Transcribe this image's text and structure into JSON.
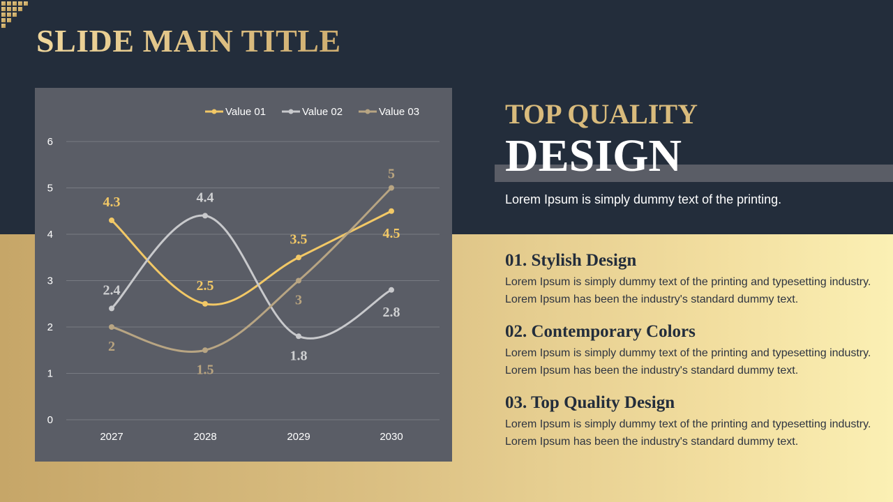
{
  "slide": {
    "title": "SLIDE MAIN TITLE",
    "heading_top": "TOP QUALITY",
    "heading_main": "DESIGN",
    "subtitle": "Lorem Ipsum is simply dummy text of the printing."
  },
  "items": [
    {
      "title": "01. Stylish Design",
      "text": "Lorem Ipsum is simply dummy text of the printing and typesetting industry. Lorem Ipsum has been the industry's standard dummy text."
    },
    {
      "title": "02. Contemporary Colors",
      "text": "Lorem Ipsum is simply dummy text of the printing and typesetting industry. Lorem Ipsum has been the industry's standard dummy text."
    },
    {
      "title": "03. Top Quality Design",
      "text": "Lorem Ipsum is simply dummy text of the printing and typesetting industry. Lorem Ipsum has been the industry's standard dummy text."
    }
  ],
  "colors": {
    "background_dark": "#232d3b",
    "panel": "#5a5d66",
    "gold": "#d9bb7c"
  },
  "chart_data": {
    "type": "line",
    "categories": [
      "2027",
      "2028",
      "2029",
      "2030"
    ],
    "series": [
      {
        "name": "Value 01",
        "values": [
          4.3,
          2.5,
          3.5,
          4.5
        ],
        "color": "#f2c866",
        "label_color": "#f2c866"
      },
      {
        "name": "Value 02",
        "values": [
          2.4,
          4.4,
          1.8,
          2.8
        ],
        "color": "#c8c9cc",
        "label_color": "#cfd0d2"
      },
      {
        "name": "Value 03",
        "values": [
          2,
          1.5,
          3,
          5
        ],
        "color": "#b8a583",
        "label_color": "#b9a47f"
      }
    ],
    "yticks": [
      "0",
      "1",
      "2",
      "3",
      "4",
      "5",
      "6"
    ],
    "ylim": [
      0,
      6
    ],
    "grid": true,
    "smooth": true,
    "legend_position": "top",
    "data_labels": true
  }
}
